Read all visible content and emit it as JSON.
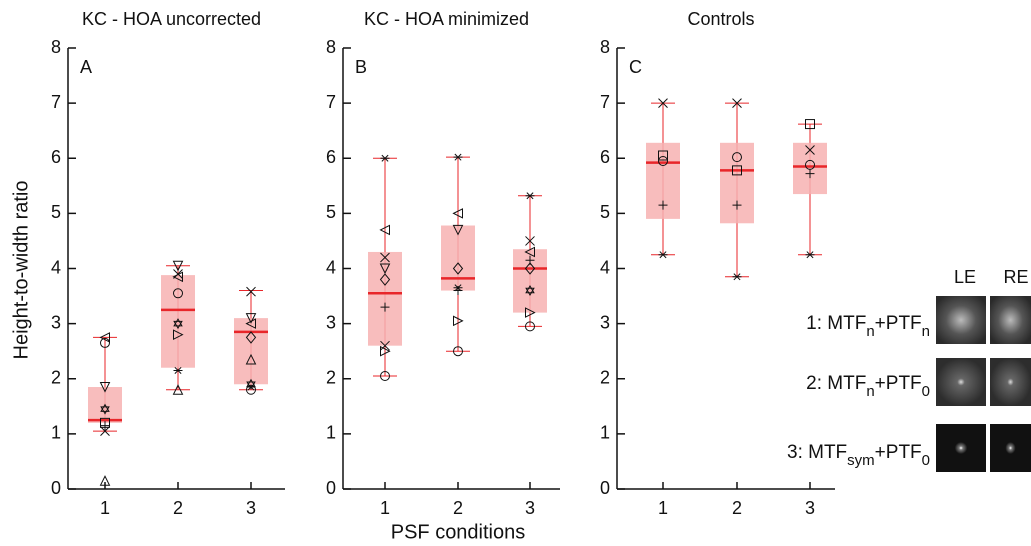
{
  "chart_data": [
    {
      "type": "box",
      "title": "KC - HOA uncorrected",
      "panel": "A",
      "categories": [
        "1",
        "2",
        "3"
      ],
      "ylim": [
        0,
        8
      ],
      "yticks": [
        0,
        1,
        2,
        3,
        4,
        5,
        6,
        7,
        8
      ],
      "color": "#e8262a",
      "box_color": "#f7b1b1",
      "boxes": [
        {
          "min": 1.05,
          "q1": 1.2,
          "median": 1.25,
          "q3": 1.85,
          "max": 2.75,
          "points": [
            2.75,
            2.65,
            1.85,
            1.45,
            1.2,
            1.15,
            1.05,
            0.15
          ],
          "markers": [
            "<",
            "o",
            "v",
            "h",
            "s",
            "+",
            "x",
            "^"
          ]
        },
        {
          "min": 1.8,
          "q1": 2.2,
          "median": 3.25,
          "q3": 3.88,
          "max": 4.05,
          "points": [
            4.05,
            3.9,
            3.85,
            3.55,
            3.0,
            2.8,
            2.15,
            1.8
          ],
          "markers": [
            "v",
            "x",
            "<",
            "o",
            "h",
            ">",
            "*",
            "^"
          ]
        },
        {
          "min": 1.8,
          "q1": 1.9,
          "median": 2.85,
          "q3": 3.1,
          "max": 3.6,
          "points": [
            3.58,
            3.1,
            3.0,
            2.75,
            2.35,
            1.9,
            1.85,
            1.8
          ],
          "markers": [
            "x",
            "v",
            "<",
            "d",
            "^",
            "h",
            "*",
            "o"
          ]
        }
      ]
    },
    {
      "type": "box",
      "title": "KC - HOA minimized",
      "panel": "B",
      "categories": [
        "1",
        "2",
        "3"
      ],
      "ylim": [
        0,
        8
      ],
      "yticks": [
        0,
        1,
        2,
        3,
        4,
        5,
        6,
        7,
        8
      ],
      "color": "#e8262a",
      "box_color": "#f7b1b1",
      "x_label": "PSF conditions",
      "boxes": [
        {
          "min": 2.05,
          "q1": 2.6,
          "median": 3.55,
          "q3": 4.3,
          "max": 6.0,
          "points": [
            6.0,
            4.7,
            4.2,
            4.0,
            3.8,
            3.3,
            2.6,
            2.5,
            2.05
          ],
          "markers": [
            "*",
            "<",
            "x",
            "v",
            "d",
            "+",
            "x",
            ">",
            "o"
          ]
        },
        {
          "min": 2.5,
          "q1": 3.6,
          "median": 3.82,
          "q3": 4.78,
          "max": 6.02,
          "points": [
            6.02,
            5.0,
            4.7,
            4.0,
            3.65,
            3.6,
            3.05,
            2.5
          ],
          "markers": [
            "*",
            "<",
            "v",
            "d",
            "*",
            "+",
            ">",
            "o"
          ]
        },
        {
          "min": 2.95,
          "q1": 3.2,
          "median": 4.0,
          "q3": 4.35,
          "max": 5.32,
          "points": [
            5.32,
            4.5,
            4.3,
            4.15,
            4.0,
            3.6,
            3.2,
            2.95
          ],
          "markers": [
            "*",
            "x",
            "<",
            "+",
            "d",
            "h",
            ">",
            "o"
          ]
        }
      ]
    },
    {
      "type": "box",
      "title": "Controls",
      "panel": "C",
      "categories": [
        "1",
        "2",
        "3"
      ],
      "ylim": [
        0,
        8
      ],
      "yticks": [
        0,
        1,
        2,
        3,
        4,
        5,
        6,
        7,
        8
      ],
      "color": "#e8262a",
      "box_color": "#f7b1b1",
      "boxes": [
        {
          "min": 4.25,
          "q1": 4.9,
          "median": 5.92,
          "q3": 6.28,
          "max": 7.0,
          "points": [
            7.0,
            6.05,
            5.95,
            5.15,
            4.25
          ],
          "markers": [
            "x",
            "s",
            "o",
            "+",
            "*"
          ]
        },
        {
          "min": 3.85,
          "q1": 4.82,
          "median": 5.78,
          "q3": 6.28,
          "max": 7.0,
          "points": [
            7.0,
            6.02,
            5.78,
            5.15,
            3.85
          ],
          "markers": [
            "x",
            "o",
            "s",
            "+",
            "*"
          ]
        },
        {
          "min": 4.25,
          "q1": 5.35,
          "median": 5.85,
          "q3": 6.28,
          "max": 6.62,
          "points": [
            6.62,
            6.15,
            5.88,
            5.72,
            4.25
          ],
          "markers": [
            "s",
            "x",
            "o",
            "+",
            "*"
          ]
        }
      ]
    }
  ],
  "y_label": "Height-to-width ratio",
  "eyes": [
    "LE",
    "RE"
  ],
  "conditions": [
    {
      "text": "1: MTF",
      "sub": "n",
      "text2": "+PTF",
      "sub2": "n"
    },
    {
      "text": "2: MTF",
      "sub": "n",
      "text2": "+PTF",
      "sub2": "0"
    },
    {
      "text": "3: MTF",
      "sub": "sym",
      "text2": "+PTF",
      "sub2": "0"
    }
  ]
}
